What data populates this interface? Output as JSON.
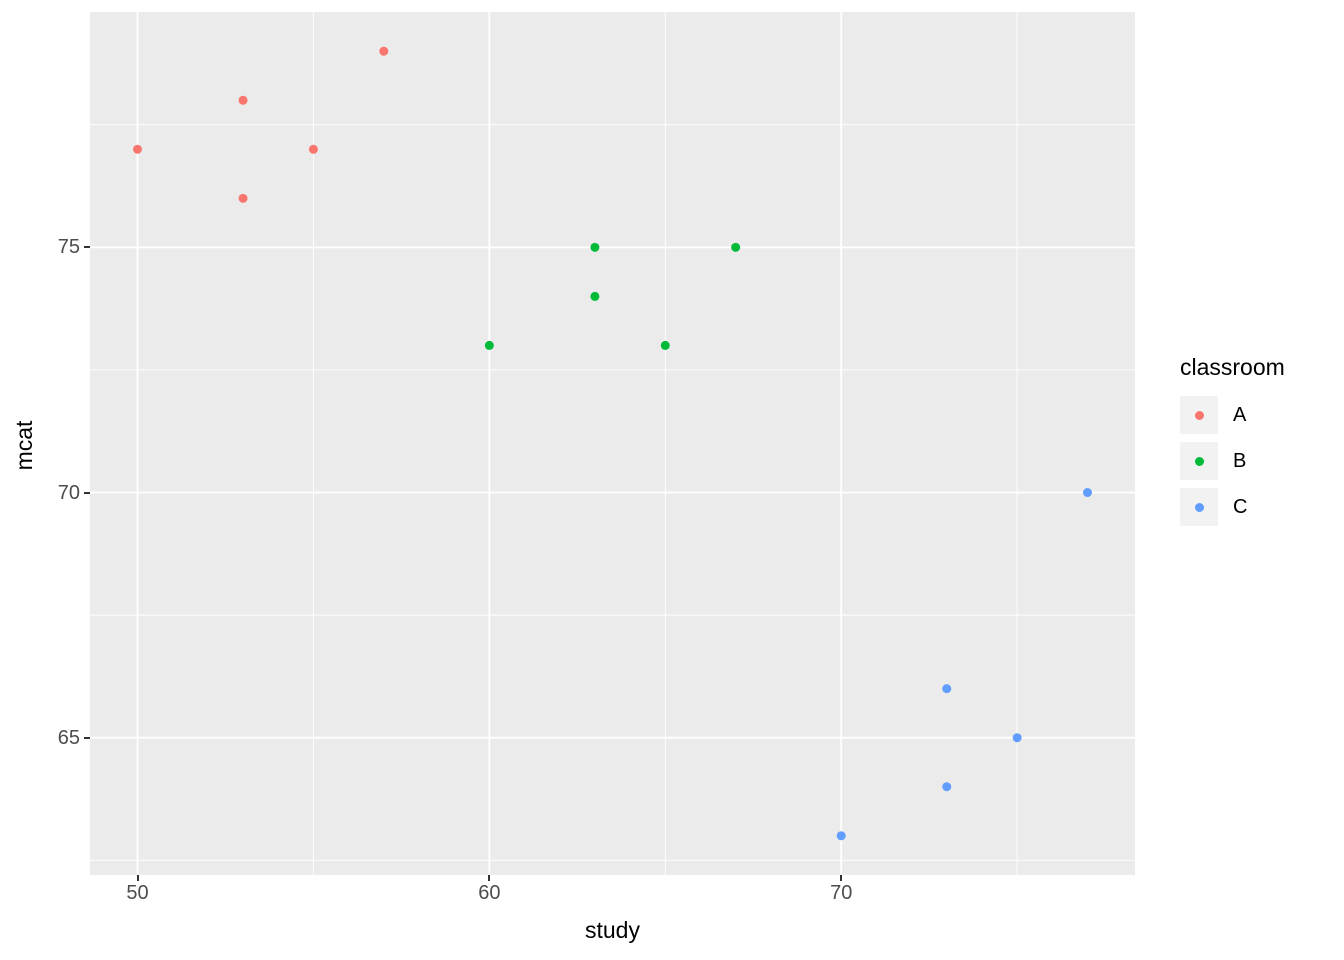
{
  "figure": {
    "background": "#FFFFFF",
    "panel_background": "#EBEBEB",
    "grid_major_color": "#FFFFFF",
    "grid_minor_color": "#FFFFFF",
    "tick_label_color": "#4D4D4D"
  },
  "chart_data": {
    "type": "scatter",
    "title": "",
    "xlabel": "study",
    "ylabel": "mcat",
    "xlim": [
      48.65,
      78.35
    ],
    "ylim": [
      62.2,
      79.8
    ],
    "x_ticks": [
      50,
      60,
      70
    ],
    "y_ticks": [
      65,
      70,
      75
    ],
    "x_minor_ticks": [
      55,
      65,
      75
    ],
    "y_minor_ticks": [
      62.5,
      67.5,
      72.5,
      77.5
    ],
    "grid": "on",
    "legend_position": "right",
    "legend_title": "classroom",
    "series": [
      {
        "name": "A",
        "color": "#F8766D",
        "points": [
          [
            50,
            77
          ],
          [
            53,
            78
          ],
          [
            53,
            76
          ],
          [
            55,
            77
          ],
          [
            57,
            79
          ]
        ]
      },
      {
        "name": "B",
        "color": "#00BA38",
        "points": [
          [
            60,
            73
          ],
          [
            63,
            75
          ],
          [
            63,
            74
          ],
          [
            65,
            73
          ],
          [
            67,
            75
          ]
        ]
      },
      {
        "name": "C",
        "color": "#619CFF",
        "points": [
          [
            70,
            63
          ],
          [
            73,
            66
          ],
          [
            73,
            64
          ],
          [
            75,
            65
          ],
          [
            77,
            70
          ]
        ]
      }
    ]
  }
}
